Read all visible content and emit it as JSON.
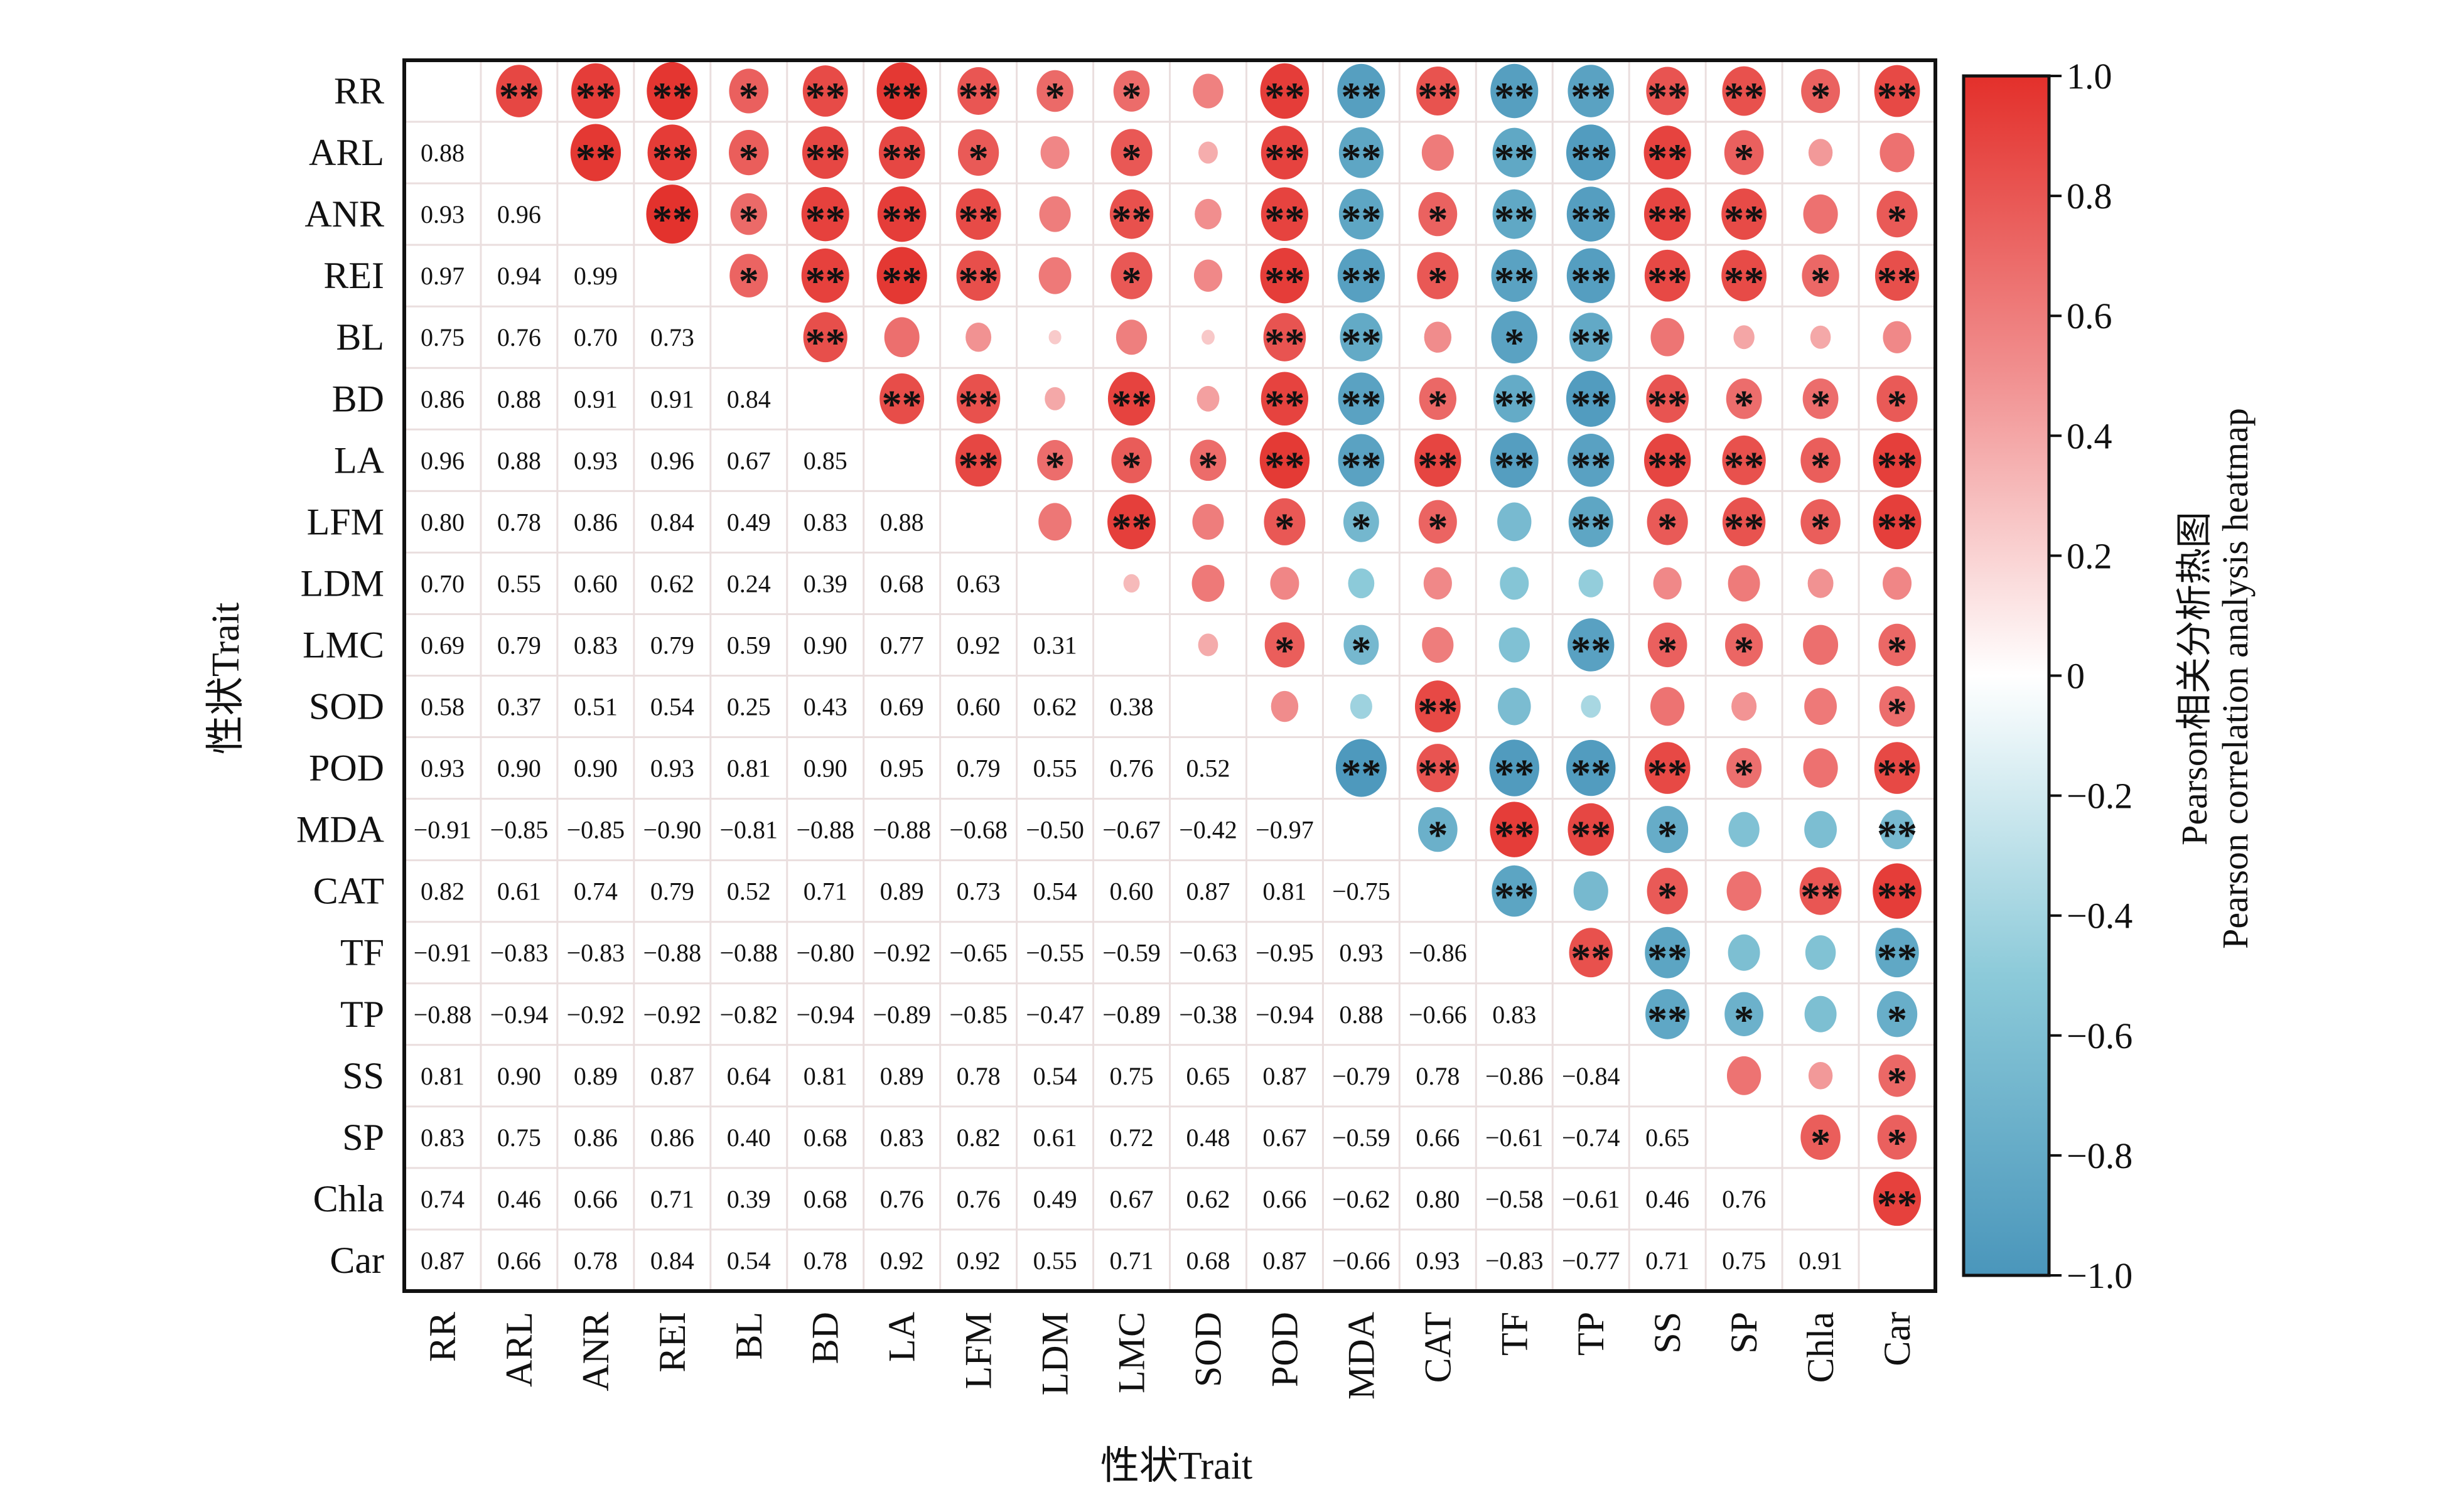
{
  "chart_data": {
    "type": "heatmap",
    "subtype": "correlation-matrix (lower: coefficients, upper: circles with significance stars)",
    "traits": [
      "RR",
      "ARL",
      "ANR",
      "REI",
      "BL",
      "BD",
      "LA",
      "LFM",
      "LDM",
      "LMC",
      "SOD",
      "POD",
      "MDA",
      "CAT",
      "TF",
      "TP",
      "SS",
      "SP",
      "Chla",
      "Car"
    ],
    "xlabel": "性状Trait",
    "ylabel": "性状Trait",
    "legend_title_line1": "Pearson相关分析热图",
    "legend_title_line2": "Pearson correlation analysis heatmap",
    "colorbar_range": [
      -1.0,
      1.0
    ],
    "colorbar_ticks": [
      "1.0",
      "0.8",
      "0.6",
      "0.4",
      "0.2",
      "0",
      "−0.2",
      "−0.4",
      "−0.6",
      "−0.8",
      "−1.0"
    ],
    "colors": {
      "positive": "#e3302b",
      "mid_positive": "#f19090",
      "zero": "#ffffff",
      "mid_negative": "#8ccad9",
      "negative": "#4a96bb"
    },
    "lower": [
      [],
      [
        "0.88"
      ],
      [
        "0.93",
        "0.96"
      ],
      [
        "0.97",
        "0.94",
        "0.99"
      ],
      [
        "0.75",
        "0.76",
        "0.70",
        "0.73"
      ],
      [
        "0.86",
        "0.88",
        "0.91",
        "0.91",
        "0.84"
      ],
      [
        "0.96",
        "0.88",
        "0.93",
        "0.96",
        "0.67",
        "0.85"
      ],
      [
        "0.80",
        "0.78",
        "0.86",
        "0.84",
        "0.49",
        "0.83",
        "0.88"
      ],
      [
        "0.70",
        "0.55",
        "0.60",
        "0.62",
        "0.24",
        "0.39",
        "0.68",
        "0.63"
      ],
      [
        "0.69",
        "0.79",
        "0.83",
        "0.79",
        "0.59",
        "0.90",
        "0.77",
        "0.92",
        "0.31"
      ],
      [
        "0.58",
        "0.37",
        "0.51",
        "0.54",
        "0.25",
        "0.43",
        "0.69",
        "0.60",
        "0.62",
        "0.38"
      ],
      [
        "0.93",
        "0.90",
        "0.90",
        "0.93",
        "0.81",
        "0.90",
        "0.95",
        "0.79",
        "0.55",
        "0.76",
        "0.52"
      ],
      [
        "-0.91",
        "-0.85",
        "-0.85",
        "-0.90",
        "-0.81",
        "-0.88",
        "-0.88",
        "-0.68",
        "-0.50",
        "-0.67",
        "-0.42",
        "-0.97"
      ],
      [
        "0.82",
        "0.61",
        "0.74",
        "0.79",
        "0.52",
        "0.71",
        "0.89",
        "0.73",
        "0.54",
        "0.60",
        "0.87",
        "0.81",
        "-0.75"
      ],
      [
        "-0.91",
        "-0.83",
        "-0.83",
        "-0.88",
        "-0.88",
        "-0.80",
        "-0.92",
        "-0.65",
        "-0.55",
        "-0.59",
        "-0.63",
        "-0.95",
        "0.93",
        "-0.86"
      ],
      [
        "-0.88",
        "-0.94",
        "-0.92",
        "-0.92",
        "-0.82",
        "-0.94",
        "-0.89",
        "-0.85",
        "-0.47",
        "-0.89",
        "-0.38",
        "-0.94",
        "0.88",
        "-0.66",
        "0.83"
      ],
      [
        "0.81",
        "0.90",
        "0.89",
        "0.87",
        "0.64",
        "0.81",
        "0.89",
        "0.78",
        "0.54",
        "0.75",
        "0.65",
        "0.87",
        "-0.79",
        "0.78",
        "-0.86",
        "-0.84"
      ],
      [
        "0.83",
        "0.75",
        "0.86",
        "0.86",
        "0.40",
        "0.68",
        "0.83",
        "0.82",
        "0.61",
        "0.72",
        "0.48",
        "0.67",
        "-0.59",
        "0.66",
        "-0.61",
        "-0.74",
        "0.65"
      ],
      [
        "0.74",
        "0.46",
        "0.66",
        "0.71",
        "0.39",
        "0.68",
        "0.76",
        "0.76",
        "0.49",
        "0.67",
        "0.62",
        "0.66",
        "-0.62",
        "0.80",
        "-0.58",
        "-0.61",
        "0.46",
        "0.76"
      ],
      [
        "0.87",
        "0.66",
        "0.78",
        "0.84",
        "0.54",
        "0.78",
        "0.92",
        "0.92",
        "0.55",
        "0.71",
        "0.68",
        "0.87",
        "-0.66",
        "0.93",
        "-0.83",
        "-0.77",
        "0.71",
        "0.75",
        "0.91"
      ]
    ],
    "upper_stars": [
      [
        "**",
        "**",
        "**",
        "*",
        "**",
        "**",
        "**",
        "*",
        "*",
        "",
        "**",
        "**",
        "**",
        "**",
        "**",
        "**",
        "**",
        "*",
        "**"
      ],
      [
        "**",
        "**",
        "*",
        "**",
        "**",
        "*",
        "",
        "*",
        "",
        "**",
        "**",
        "",
        "**",
        "**",
        "**",
        "*",
        "",
        ""
      ],
      [
        "**",
        "*",
        "**",
        "**",
        "**",
        "",
        "**",
        "",
        "**",
        "**",
        "*",
        "**",
        "**",
        "**",
        "**",
        "",
        "*"
      ],
      [
        "*",
        "**",
        "**",
        "**",
        "",
        "*",
        "",
        "**",
        "**",
        "*",
        "**",
        "**",
        "**",
        "**",
        "*",
        "**"
      ],
      [
        "**",
        "",
        "",
        "",
        "",
        "",
        "**",
        "**",
        "",
        "*",
        "**",
        "",
        "",
        "",
        ""
      ],
      [
        "**",
        "**",
        "",
        "**",
        "",
        "**",
        "**",
        "*",
        "**",
        "**",
        "**",
        "*",
        "*",
        "*"
      ],
      [
        "**",
        "*",
        "*",
        "*",
        "**",
        "**",
        "**",
        "**",
        "**",
        "**",
        "**",
        "*",
        "**"
      ],
      [
        "",
        "**",
        "",
        "*",
        "*",
        "*",
        "",
        "**",
        "*",
        "**",
        "*",
        "**"
      ],
      [
        "",
        "",
        "",
        "",
        "",
        "",
        "",
        "",
        "",
        "",
        ""
      ],
      [
        "",
        "*",
        "*",
        "",
        "",
        "**",
        "*",
        "*",
        "",
        "*"
      ],
      [
        "",
        "",
        "**",
        "",
        "",
        "",
        "",
        "",
        "*"
      ],
      [
        "**",
        "**",
        "**",
        "**",
        "**",
        "*",
        "",
        "**"
      ],
      [
        "*",
        "**",
        "**",
        "*",
        "",
        "",
        "**"
      ],
      [
        "**",
        "",
        "*",
        "",
        "**",
        "**"
      ],
      [
        "**",
        "**",
        "",
        "",
        "**"
      ],
      [
        "**",
        "*",
        "",
        "*"
      ],
      [
        "",
        "",
        "*"
      ],
      [
        "*",
        "*"
      ],
      [
        "**"
      ],
      []
    ]
  }
}
